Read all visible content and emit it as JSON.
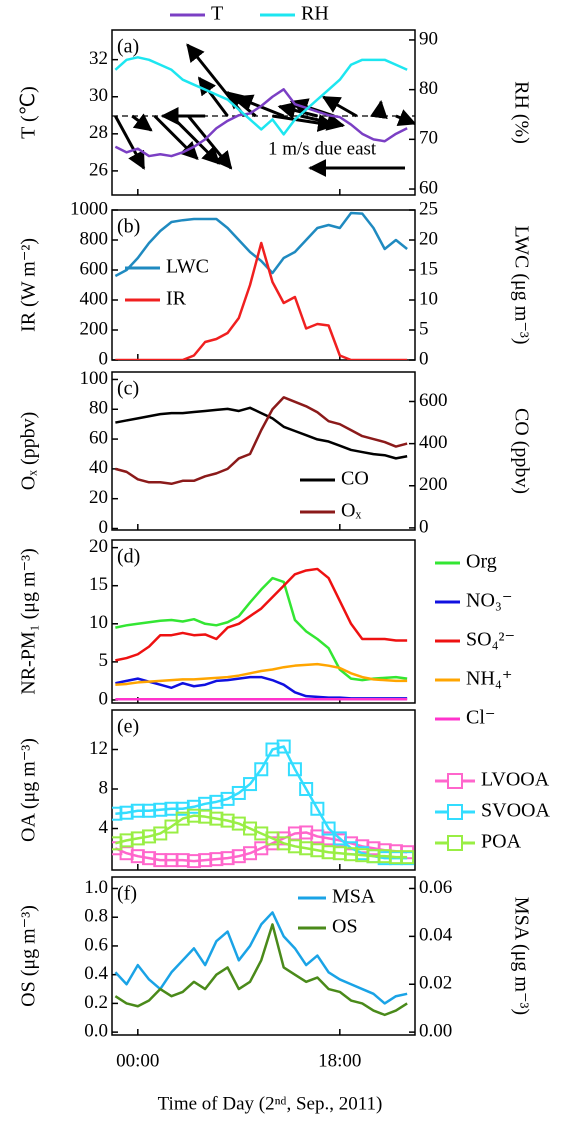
{
  "chart_data": {
    "type": "multi-panel",
    "x": [
      -2,
      -1,
      0,
      1,
      2,
      3,
      4,
      5,
      6,
      7,
      8,
      9,
      10,
      11,
      12,
      13,
      14,
      15,
      16,
      17,
      18,
      19,
      20,
      21,
      22,
      23,
      24
    ],
    "xlim": [
      -2.3,
      24.7
    ],
    "xticks": [
      {
        "value": 0,
        "label": "00:00"
      },
      {
        "value": 18,
        "label": "18:00"
      }
    ],
    "xlabel": "Time of Day (2ⁿᵈ, Sep., 2011)",
    "panels": [
      {
        "type": "line",
        "label": "(a)",
        "ylabel": "T (℃)",
        "y2label": "RH (%)",
        "ylim": [
          24.7,
          33.6
        ],
        "yticks": [
          26,
          28,
          30,
          32
        ],
        "y2lim": [
          58.8,
          92
        ],
        "y2ticks": [
          60,
          70,
          80,
          90
        ],
        "legend": "top-outside",
        "series": [
          {
            "name": "T",
            "color": "#7b3fc4",
            "values": [
              27.3,
              27.0,
              27.2,
              26.8,
              26.9,
              26.8,
              27.0,
              27.3,
              27.7,
              28.3,
              28.7,
              29.0,
              29.1,
              29.5,
              30.0,
              30.4,
              29.6,
              29.4,
              29.2,
              29.0,
              28.9,
              28.5,
              28.0,
              27.7,
              27.6,
              28.0,
              28.3
            ]
          },
          {
            "name": "RH",
            "color": "#1de6f0",
            "axis": "y2",
            "values": [
              84,
              86,
              86.5,
              86,
              85,
              84,
              82,
              81,
              80,
              79,
              78,
              76,
              74,
              72,
              74,
              71,
              74,
              76,
              78,
              80,
              82,
              85,
              86,
              86,
              86,
              85,
              84
            ]
          }
        ],
        "wind": {
          "x": [
            -2,
            -0.5,
            1.5,
            3,
            4.5,
            6,
            8,
            9.5,
            10.5,
            12,
            13,
            14.5,
            16,
            17.5,
            19.5,
            21.5,
            23
          ],
          "u": [
            0.3,
            0.2,
            0.45,
            0.5,
            0.45,
            -0.45,
            -0.3,
            -0.6,
            -0.3,
            0.65,
            -0.5,
            0.45,
            -0.4,
            -0.45,
            -0.35,
            0.02,
            0.2
          ],
          "v": [
            -0.55,
            -0.15,
            -0.45,
            -0.5,
            -0.55,
            0,
            0.4,
            0.75,
            0.25,
            -0.1,
            0.2,
            -0.1,
            0.1,
            0.15,
            0.2,
            0.15,
            -0.08
          ]
        },
        "annotation": "1 m/s due east"
      },
      {
        "type": "line",
        "label": "(b)",
        "ylabel": "IR (W m⁻²)",
        "y2label": "LWC (μg m⁻³)",
        "ylim": [
          0,
          1000
        ],
        "yticks": [
          0,
          200,
          400,
          600,
          800,
          1000
        ],
        "y2lim": [
          0,
          25
        ],
        "y2ticks": [
          0,
          5,
          10,
          15,
          20,
          25
        ],
        "legend": "lower left",
        "series": [
          {
            "name": "LWC",
            "color": "#1f8ac0",
            "axis": "y2",
            "values": [
              14,
              15,
              17,
              19.5,
              21.5,
              23,
              23.3,
              23.5,
              23.5,
              23.5,
              22,
              20,
              18,
              16.5,
              14.5,
              17,
              18,
              20,
              22,
              22.5,
              22,
              24.5,
              24.4,
              22,
              18.5,
              20,
              18.5
            ]
          },
          {
            "name": "IR",
            "color": "#f02020",
            "values": [
              0,
              0,
              0,
              0,
              0,
              0,
              0,
              30,
              120,
              140,
              180,
              280,
              500,
              780,
              520,
              380,
              420,
              210,
              240,
              230,
              30,
              0,
              0,
              0,
              0,
              0,
              0
            ]
          }
        ]
      },
      {
        "type": "line",
        "label": "(c)",
        "ylabel": "Oₓ (ppbv)",
        "y2label": "CO (ppbv)",
        "ylim": [
          -1,
          105
        ],
        "yticks": [
          0,
          20,
          40,
          60,
          80,
          100
        ],
        "y2lim": [
          -10,
          740
        ],
        "y2ticks": [
          0,
          200,
          400,
          600
        ],
        "legend": "lower right",
        "series": [
          {
            "name": "CO",
            "color": "#000000",
            "axis": "y2",
            "values": [
              500,
              510,
              520,
              530,
              540,
              545,
              545,
              550,
              555,
              560,
              565,
              555,
              570,
              545,
              520,
              480,
              460,
              440,
              420,
              410,
              390,
              370,
              360,
              350,
              345,
              330,
              340
            ]
          },
          {
            "name": "Oₓ",
            "color": "#8b1a1a",
            "values": [
              40,
              38,
              33,
              31,
              31,
              30,
              32,
              32,
              35,
              37,
              40,
              47,
              50,
              66,
              80,
              88,
              85,
              82,
              78,
              72,
              70,
              66,
              62,
              60,
              58,
              55,
              57
            ]
          }
        ]
      },
      {
        "type": "line",
        "label": "(d)",
        "ylabel": "NR-PM₁ (μg m⁻³)",
        "ylim": [
          -0.4,
          21
        ],
        "yticks": [
          0,
          5,
          10,
          15,
          20
        ],
        "legend": "right-outside",
        "series": [
          {
            "name": "Org",
            "color": "#33e633",
            "values": [
              9.5,
              9.8,
              10,
              10.2,
              10.4,
              10.5,
              10.3,
              10.6,
              10,
              9.8,
              10.2,
              11,
              12.8,
              14.5,
              16,
              15.5,
              10.5,
              9,
              8,
              6.8,
              4,
              2.8,
              2.6,
              2.8,
              2.9,
              3,
              2.8
            ]
          },
          {
            "name": "NO₃⁻",
            "color": "#1010e0",
            "values": [
              2.2,
              2.5,
              2.8,
              2.4,
              2,
              1.6,
              2.2,
              1.8,
              2,
              2.5,
              2.6,
              2.8,
              3,
              3,
              2.6,
              2,
              1,
              0.5,
              0.4,
              0.3,
              0.3,
              0.2,
              0.2,
              0.2,
              0.2,
              0.2,
              0.2
            ]
          },
          {
            "name": "SO₄²⁻",
            "color": "#ee1111",
            "values": [
              5.2,
              5.5,
              6,
              7,
              8.5,
              8.5,
              8.8,
              8.5,
              8.6,
              8,
              9.5,
              10,
              11,
              12,
              13.5,
              15,
              16.5,
              17,
              17.2,
              16,
              13,
              10,
              8,
              8,
              8,
              7.8,
              7.8
            ]
          },
          {
            "name": "NH₄⁺",
            "color": "#ffa500",
            "values": [
              2,
              2.1,
              2.3,
              2.4,
              2.5,
              2.6,
              2.7,
              2.7,
              2.8,
              2.9,
              3,
              3.2,
              3.5,
              3.8,
              4,
              4.3,
              4.5,
              4.6,
              4.7,
              4.5,
              4.2,
              3.5,
              3,
              2.7,
              2.6,
              2.5,
              2.5
            ]
          },
          {
            "name": "Cl⁻",
            "color": "#ff33cc",
            "values": [
              0.1,
              0.1,
              0.1,
              0.1,
              0.1,
              0.1,
              0.1,
              0.1,
              0.1,
              0.1,
              0.1,
              0.1,
              0.1,
              0.1,
              0.1,
              0.1,
              0.1,
              0.1,
              0.1,
              0.1,
              0.1,
              0.1,
              0.1,
              0.1,
              0.1,
              0.1,
              0.1
            ]
          }
        ]
      },
      {
        "type": "line",
        "label": "(e)",
        "ylabel": "OA (μg m⁻³)",
        "marker": "square",
        "ylim": [
          -0.2,
          16
        ],
        "yticks": [
          4,
          8,
          12
        ],
        "legend": "right-outside",
        "series": [
          {
            "name": "LVOOA",
            "color": "#ff66cc",
            "values": [
              2,
              1.5,
              1.2,
              1,
              0.8,
              0.8,
              0.8,
              0.7,
              0.8,
              0.9,
              1,
              1.2,
              1.5,
              2,
              2.5,
              3,
              3.5,
              3.6,
              3.2,
              3,
              2.8,
              2.5,
              2.2,
              2,
              1.8,
              1.7,
              1.6
            ]
          },
          {
            "name": "SVOOA",
            "color": "#33ddff",
            "values": [
              5.5,
              5.6,
              5.8,
              5.8,
              5.9,
              6,
              6,
              6.2,
              6.5,
              6.7,
              7,
              7.6,
              8.5,
              10,
              12,
              12.3,
              10,
              8,
              6,
              4,
              3,
              2,
              1.5,
              1.2,
              1,
              1,
              1
            ]
          },
          {
            "name": "POA",
            "color": "#99ee44",
            "values": [
              2.5,
              2.8,
              3,
              3.2,
              3.5,
              4.2,
              5,
              5.3,
              5.2,
              5,
              4.8,
              4.5,
              4,
              3.5,
              3,
              2.5,
              2.2,
              2,
              1.8,
              1.6,
              1.5,
              1.4,
              1.3,
              1.2,
              1.2,
              1.1,
              1.1
            ]
          }
        ]
      },
      {
        "type": "line",
        "label": "(f)",
        "ylabel": "OS (μg m⁻³)",
        "y2label": "MSA (μg m⁻³)",
        "ylim": [
          -0.02,
          1.08
        ],
        "yticks": [
          {
            "value": 0,
            "label": "0.0"
          },
          {
            "value": 0.2,
            "label": "0.2"
          },
          {
            "value": 0.4,
            "label": "0.4"
          },
          {
            "value": 0.6,
            "label": "0.6"
          },
          {
            "value": 0.8,
            "label": "0.8"
          },
          {
            "value": 1,
            "label": "1.0"
          }
        ],
        "y2lim": [
          -0.0012,
          0.0648
        ],
        "y2ticks": [
          {
            "value": 0,
            "label": "0.00"
          },
          {
            "value": 0.02,
            "label": "0.02"
          },
          {
            "value": 0.04,
            "label": "0.04"
          },
          {
            "value": 0.06,
            "label": "0.06"
          }
        ],
        "legend": "upper right",
        "series": [
          {
            "name": "MSA",
            "color": "#1aa3e6",
            "axis": "y2",
            "values": [
              0.025,
              0.02,
              0.028,
              0.022,
              0.018,
              0.025,
              0.03,
              0.035,
              0.028,
              0.038,
              0.042,
              0.03,
              0.036,
              0.045,
              0.05,
              0.04,
              0.035,
              0.028,
              0.032,
              0.025,
              0.022,
              0.02,
              0.018,
              0.016,
              0.012,
              0.015,
              0.016
            ]
          },
          {
            "name": "OS",
            "color": "#4a8a1a",
            "values": [
              0.25,
              0.2,
              0.18,
              0.22,
              0.3,
              0.25,
              0.28,
              0.35,
              0.3,
              0.4,
              0.45,
              0.3,
              0.35,
              0.5,
              0.75,
              0.45,
              0.4,
              0.35,
              0.38,
              0.3,
              0.28,
              0.22,
              0.2,
              0.15,
              0.12,
              0.15,
              0.2
            ]
          }
        ]
      }
    ]
  }
}
